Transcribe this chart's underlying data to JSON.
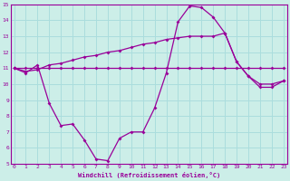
{
  "xlabel": "Windchill (Refroidissement éolien,°C)",
  "bg_color": "#cceee8",
  "grid_color": "#aadddd",
  "line_color": "#990099",
  "xmin": 0,
  "xmax": 23,
  "ymin": 5,
  "ymax": 15,
  "series1_x": [
    0,
    1,
    2,
    3,
    4,
    5,
    6,
    7,
    8,
    9,
    10,
    11,
    12,
    13,
    14,
    15,
    16,
    17,
    18,
    19,
    20,
    21,
    22,
    23
  ],
  "series1_y": [
    11.0,
    11.0,
    11.0,
    11.0,
    11.0,
    11.0,
    11.0,
    11.0,
    11.0,
    11.0,
    11.0,
    11.0,
    11.0,
    11.0,
    11.0,
    11.0,
    11.0,
    11.0,
    11.0,
    11.0,
    11.0,
    11.0,
    11.0,
    11.0
  ],
  "series2_x": [
    0,
    1,
    2,
    3,
    4,
    5,
    6,
    7,
    8,
    9,
    10,
    11,
    12,
    13,
    14,
    15,
    16,
    17,
    18,
    19,
    20,
    21,
    22,
    23
  ],
  "series2_y": [
    11.0,
    10.8,
    10.9,
    11.2,
    11.3,
    11.5,
    11.7,
    11.8,
    12.0,
    12.1,
    12.3,
    12.5,
    12.6,
    12.8,
    12.9,
    13.0,
    13.0,
    13.0,
    13.2,
    11.4,
    10.5,
    10.0,
    10.0,
    10.2
  ],
  "series3_x": [
    0,
    1,
    2,
    3,
    4,
    5,
    6,
    7,
    8,
    9,
    10,
    11,
    12,
    13,
    14,
    15,
    16,
    17,
    18,
    19,
    20,
    21,
    22,
    23
  ],
  "series3_y": [
    11.0,
    10.7,
    11.2,
    8.8,
    7.4,
    7.5,
    6.5,
    5.3,
    5.2,
    6.6,
    7.0,
    7.0,
    8.5,
    10.7,
    13.9,
    14.9,
    14.8,
    14.2,
    13.2,
    11.4,
    10.5,
    9.8,
    9.8,
    10.2
  ]
}
